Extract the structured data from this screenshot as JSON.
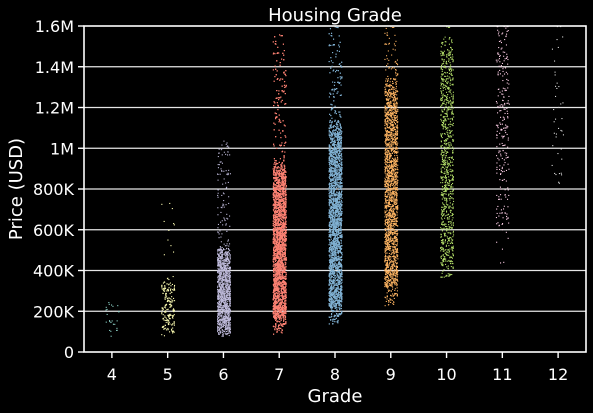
{
  "chart_data": {
    "type": "scatter",
    "title": "Housing Grade",
    "xlabel": "Grade",
    "ylabel": "Price (USD)",
    "grid": "horizontal",
    "categories": [
      "4",
      "5",
      "6",
      "7",
      "8",
      "9",
      "10",
      "11",
      "12"
    ],
    "ylim": [
      0,
      1600000
    ],
    "yticks": [
      0,
      200000,
      400000,
      600000,
      800000,
      1000000,
      1200000,
      1400000,
      1600000
    ],
    "ytick_labels": [
      "0",
      "200K",
      "400K",
      "600K",
      "800K",
      "1M",
      "1.2M",
      "1.4M",
      "1.6M"
    ],
    "series": [
      {
        "category": "4",
        "color": "#8dd3c7",
        "count": 25,
        "dense_range": [
          80000,
          250000
        ],
        "min": 80000,
        "max": 440000
      },
      {
        "category": "5",
        "color": "#ffffb3",
        "count": 200,
        "dense_range": [
          100000,
          350000
        ],
        "min": 80000,
        "max": 780000
      },
      {
        "category": "6",
        "color": "#bebada",
        "count": 1400,
        "dense_range": [
          100000,
          500000
        ],
        "min": 80000,
        "max": 1060000
      },
      {
        "category": "7",
        "color": "#fb8072",
        "count": 6000,
        "dense_range": [
          150000,
          900000
        ],
        "min": 90000,
        "max": 1560000
      },
      {
        "category": "8",
        "color": "#80b1d3",
        "count": 4500,
        "dense_range": [
          200000,
          1100000
        ],
        "min": 140000,
        "max": 1600000
      },
      {
        "category": "9",
        "color": "#fdb462",
        "count": 2000,
        "dense_range": [
          300000,
          1300000
        ],
        "min": 230000,
        "max": 1600000
      },
      {
        "category": "10",
        "color": "#b3de69",
        "count": 900,
        "dense_range": [
          400000,
          1500000
        ],
        "min": 370000,
        "max": 1600000
      },
      {
        "category": "11",
        "color": "#fccde5",
        "count": 250,
        "dense_range": [
          600000,
          1600000
        ],
        "min": 420000,
        "max": 1600000
      },
      {
        "category": "12",
        "color": "#d9d9d9",
        "count": 40,
        "dense_range": [
          800000,
          1600000
        ],
        "min": 740000,
        "max": 1600000
      }
    ]
  }
}
